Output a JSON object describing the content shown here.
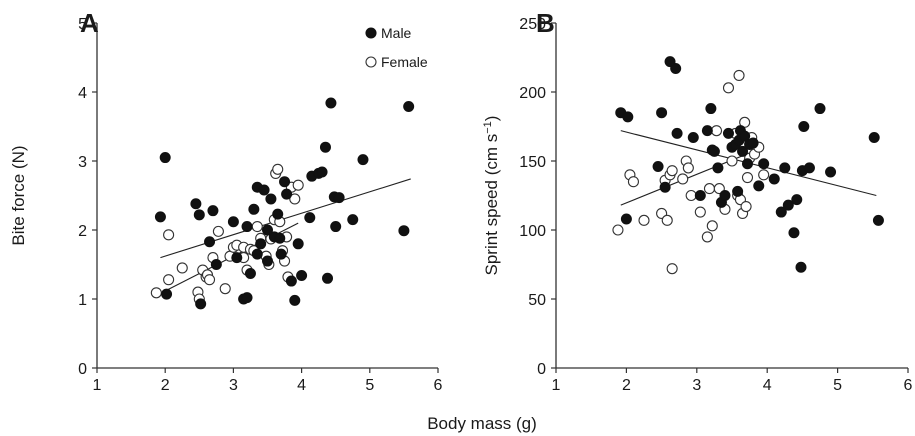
{
  "figure": {
    "shared_xlabel": "Body mass (g)"
  },
  "legend": [
    {
      "label": "Male",
      "marker": "filled-circle"
    },
    {
      "label": "Female",
      "marker": "open-circle"
    }
  ],
  "chart_data": [
    {
      "type": "scatter",
      "panel_label": "A",
      "xlabel": "Body mass (g)",
      "ylabel": "Bite force (N)",
      "xlim": [
        1,
        6
      ],
      "ylim": [
        0,
        5
      ],
      "xticks": [
        "1",
        "2",
        "3",
        "4",
        "5",
        "6"
      ],
      "yticks": [
        "0",
        "1",
        "2",
        "3",
        "4",
        "5"
      ],
      "grid": false,
      "legend_position": "top-right",
      "series": [
        {
          "name": "Male",
          "marker": "filled",
          "points": [
            [
              1.93,
              2.19
            ],
            [
              2.0,
              3.05
            ],
            [
              2.02,
              1.07
            ],
            [
              2.45,
              2.38
            ],
            [
              2.5,
              2.22
            ],
            [
              2.52,
              0.93
            ],
            [
              2.65,
              1.83
            ],
            [
              2.7,
              2.28
            ],
            [
              2.75,
              1.5
            ],
            [
              3.0,
              2.12
            ],
            [
              3.05,
              1.6
            ],
            [
              3.15,
              1.0
            ],
            [
              3.2,
              1.02
            ],
            [
              3.2,
              2.05
            ],
            [
              3.25,
              1.37
            ],
            [
              3.3,
              2.3
            ],
            [
              3.35,
              1.65
            ],
            [
              3.35,
              2.62
            ],
            [
              3.4,
              1.8
            ],
            [
              3.45,
              2.58
            ],
            [
              3.5,
              1.55
            ],
            [
              3.5,
              2.0
            ],
            [
              3.55,
              2.45
            ],
            [
              3.6,
              1.9
            ],
            [
              3.65,
              2.23
            ],
            [
              3.68,
              1.88
            ],
            [
              3.7,
              1.65
            ],
            [
              3.75,
              2.7
            ],
            [
              3.78,
              2.52
            ],
            [
              3.85,
              1.26
            ],
            [
              3.9,
              0.98
            ],
            [
              3.95,
              1.8
            ],
            [
              4.0,
              1.34
            ],
            [
              4.12,
              2.18
            ],
            [
              4.15,
              2.78
            ],
            [
              4.25,
              2.82
            ],
            [
              4.3,
              2.84
            ],
            [
              4.35,
              3.2
            ],
            [
              4.38,
              1.3
            ],
            [
              4.43,
              3.84
            ],
            [
              4.48,
              2.48
            ],
            [
              4.5,
              2.05
            ],
            [
              4.55,
              2.47
            ],
            [
              4.75,
              2.15
            ],
            [
              4.9,
              3.02
            ],
            [
              5.5,
              1.99
            ],
            [
              5.57,
              3.79
            ]
          ]
        },
        {
          "name": "Female",
          "marker": "open",
          "points": [
            [
              1.87,
              1.09
            ],
            [
              2.05,
              1.93
            ],
            [
              2.05,
              1.28
            ],
            [
              2.25,
              1.45
            ],
            [
              2.48,
              1.1
            ],
            [
              2.5,
              1.0
            ],
            [
              2.55,
              1.42
            ],
            [
              2.6,
              1.32
            ],
            [
              2.62,
              1.35
            ],
            [
              2.65,
              1.28
            ],
            [
              2.7,
              1.6
            ],
            [
              2.78,
              1.98
            ],
            [
              2.88,
              1.15
            ],
            [
              2.95,
              1.62
            ],
            [
              3.0,
              1.75
            ],
            [
              3.05,
              1.78
            ],
            [
              3.15,
              1.6
            ],
            [
              3.15,
              1.75
            ],
            [
              3.2,
              1.42
            ],
            [
              3.25,
              1.72
            ],
            [
              3.3,
              1.7
            ],
            [
              3.35,
              2.05
            ],
            [
              3.4,
              1.88
            ],
            [
              3.48,
              1.62
            ],
            [
              3.52,
              1.5
            ],
            [
              3.55,
              1.87
            ],
            [
              3.6,
              2.15
            ],
            [
              3.62,
              2.82
            ],
            [
              3.65,
              2.88
            ],
            [
              3.68,
              2.12
            ],
            [
              3.72,
              1.7
            ],
            [
              3.75,
              1.55
            ],
            [
              3.78,
              1.9
            ],
            [
              3.8,
              1.32
            ],
            [
              3.85,
              2.62
            ],
            [
              3.9,
              2.45
            ],
            [
              3.95,
              2.65
            ]
          ]
        }
      ],
      "regression_lines": [
        {
          "name": "Male",
          "x": [
            1.93,
            5.6
          ],
          "y": [
            1.6,
            2.74
          ]
        },
        {
          "name": "Female",
          "x": [
            1.87,
            3.95
          ],
          "y": [
            1.05,
            2.1
          ]
        }
      ]
    },
    {
      "type": "scatter",
      "panel_label": "B",
      "xlabel": "Body mass (g)",
      "ylabel": "Sprint speed (cm s",
      "ylabel_superscript": "−1",
      "ylabel_suffix": ")",
      "xlim": [
        1,
        6
      ],
      "ylim": [
        0,
        250
      ],
      "xticks": [
        "1",
        "2",
        "3",
        "4",
        "5",
        "6"
      ],
      "yticks": [
        "0",
        "50",
        "100",
        "150",
        "200",
        "250"
      ],
      "grid": false,
      "series": [
        {
          "name": "Male",
          "marker": "filled",
          "points": [
            [
              1.92,
              185
            ],
            [
              2.0,
              108
            ],
            [
              2.02,
              182
            ],
            [
              2.45,
              146
            ],
            [
              2.5,
              185
            ],
            [
              2.55,
              131
            ],
            [
              2.62,
              222
            ],
            [
              2.7,
              217
            ],
            [
              2.72,
              170
            ],
            [
              2.95,
              167
            ],
            [
              3.05,
              125
            ],
            [
              3.15,
              172
            ],
            [
              3.2,
              188
            ],
            [
              3.22,
              158
            ],
            [
              3.25,
              157
            ],
            [
              3.3,
              145
            ],
            [
              3.35,
              120
            ],
            [
              3.4,
              125
            ],
            [
              3.45,
              170
            ],
            [
              3.5,
              160
            ],
            [
              3.55,
              162
            ],
            [
              3.58,
              128
            ],
            [
              3.6,
              165
            ],
            [
              3.62,
              172
            ],
            [
              3.65,
              157
            ],
            [
              3.68,
              168
            ],
            [
              3.72,
              148
            ],
            [
              3.75,
              162
            ],
            [
              3.8,
              163
            ],
            [
              3.88,
              132
            ],
            [
              3.95,
              148
            ],
            [
              4.1,
              137
            ],
            [
              4.2,
              113
            ],
            [
              4.25,
              145
            ],
            [
              4.3,
              118
            ],
            [
              4.38,
              98
            ],
            [
              4.42,
              122
            ],
            [
              4.48,
              73
            ],
            [
              4.5,
              143
            ],
            [
              4.52,
              175
            ],
            [
              4.6,
              145
            ],
            [
              4.75,
              188
            ],
            [
              4.9,
              142
            ],
            [
              5.52,
              167
            ],
            [
              5.58,
              107
            ]
          ]
        },
        {
          "name": "Female",
          "marker": "open",
          "points": [
            [
              1.88,
              100
            ],
            [
              2.05,
              140
            ],
            [
              2.1,
              135
            ],
            [
              2.25,
              107
            ],
            [
              2.5,
              112
            ],
            [
              2.55,
              136
            ],
            [
              2.58,
              107
            ],
            [
              2.62,
              140
            ],
            [
              2.65,
              143
            ],
            [
              2.65,
              72
            ],
            [
              2.8,
              137
            ],
            [
              2.85,
              150
            ],
            [
              2.88,
              145
            ],
            [
              2.92,
              125
            ],
            [
              3.05,
              113
            ],
            [
              3.15,
              95
            ],
            [
              3.18,
              130
            ],
            [
              3.22,
              103
            ],
            [
              3.28,
              172
            ],
            [
              3.32,
              130
            ],
            [
              3.4,
              115
            ],
            [
              3.45,
              203
            ],
            [
              3.5,
              150
            ],
            [
              3.55,
              170
            ],
            [
              3.58,
              125
            ],
            [
              3.6,
              212
            ],
            [
              3.62,
              122
            ],
            [
              3.65,
              112
            ],
            [
              3.68,
              178
            ],
            [
              3.7,
              117
            ],
            [
              3.72,
              138
            ],
            [
              3.75,
              152
            ],
            [
              3.78,
              167
            ],
            [
              3.82,
              155
            ],
            [
              3.88,
              160
            ],
            [
              3.95,
              140
            ]
          ]
        }
      ],
      "regression_lines": [
        {
          "name": "Male",
          "x": [
            1.92,
            5.55
          ],
          "y": [
            172,
            125
          ]
        },
        {
          "name": "Female",
          "x": [
            1.92,
            3.95
          ],
          "y": [
            118,
            160
          ]
        }
      ]
    }
  ]
}
